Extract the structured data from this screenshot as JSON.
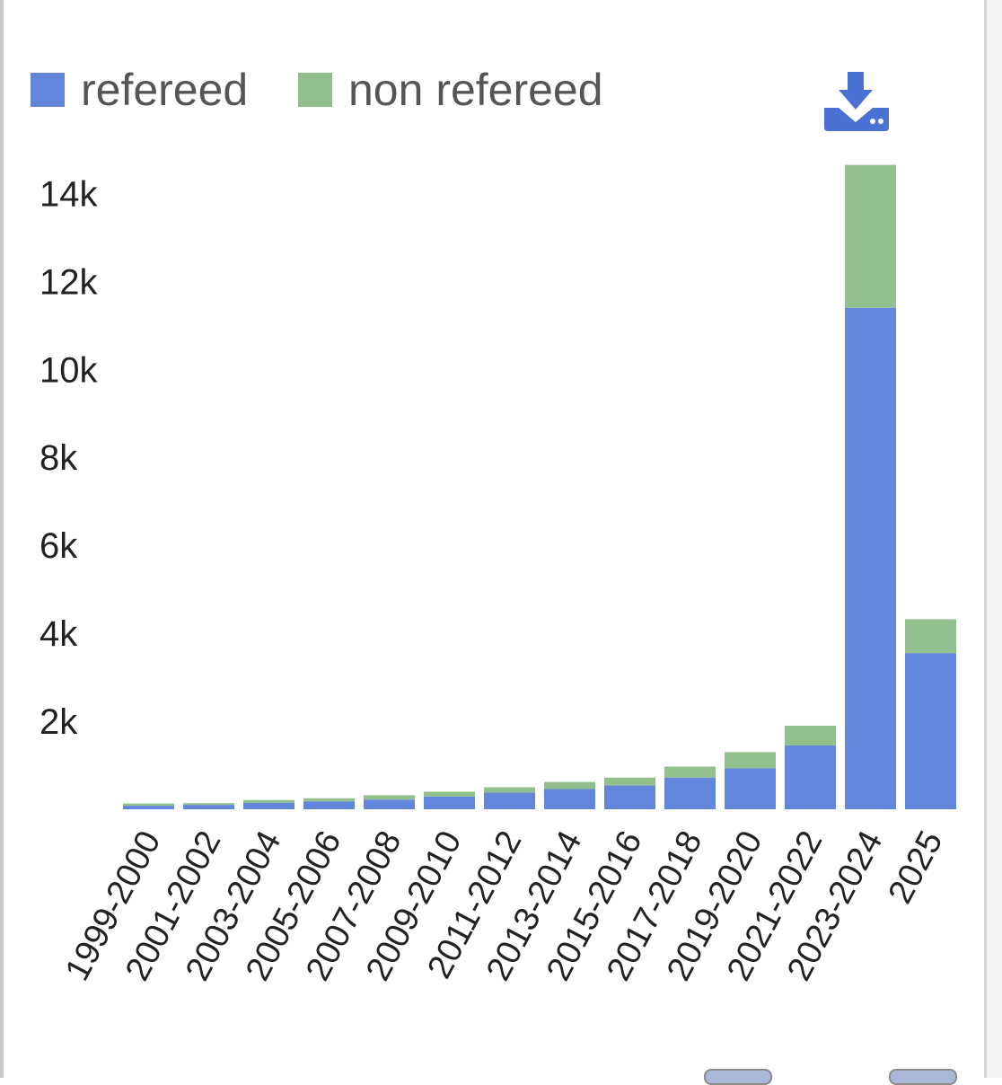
{
  "legend": {
    "items": [
      {
        "label": "refereed",
        "color": "#6286db"
      },
      {
        "label": "non refereed",
        "color": "#92c08d"
      }
    ]
  },
  "download": {
    "icon": "download-icon",
    "color": "#4a72d4"
  },
  "chart_data": {
    "type": "bar",
    "stacked": true,
    "categories": [
      "1999-2000",
      "2001-2002",
      "2003-2004",
      "2005-2006",
      "2007-2008",
      "2009-2010",
      "2011-2012",
      "2013-2014",
      "2015-2016",
      "2017-2018",
      "2019-2020",
      "2021-2022",
      "2023-2024",
      "2025"
    ],
    "series": [
      {
        "name": "refereed",
        "color": "#6286db",
        "values": [
          80,
          100,
          150,
          180,
          220,
          290,
          380,
          460,
          540,
          720,
          930,
          1450,
          11400,
          3550
        ]
      },
      {
        "name": "non refereed",
        "color": "#92c08d",
        "values": [
          50,
          40,
          60,
          70,
          100,
          110,
          120,
          160,
          180,
          250,
          370,
          450,
          3250,
          770
        ]
      }
    ],
    "ylim": [
      0,
      14600
    ],
    "yticks": [
      2000,
      4000,
      6000,
      8000,
      10000,
      12000,
      14000
    ],
    "ytick_labels": [
      "2k",
      "4k",
      "6k",
      "8k",
      "10k",
      "12k",
      "14k"
    ],
    "grid": false,
    "legend_position": "top-left"
  }
}
